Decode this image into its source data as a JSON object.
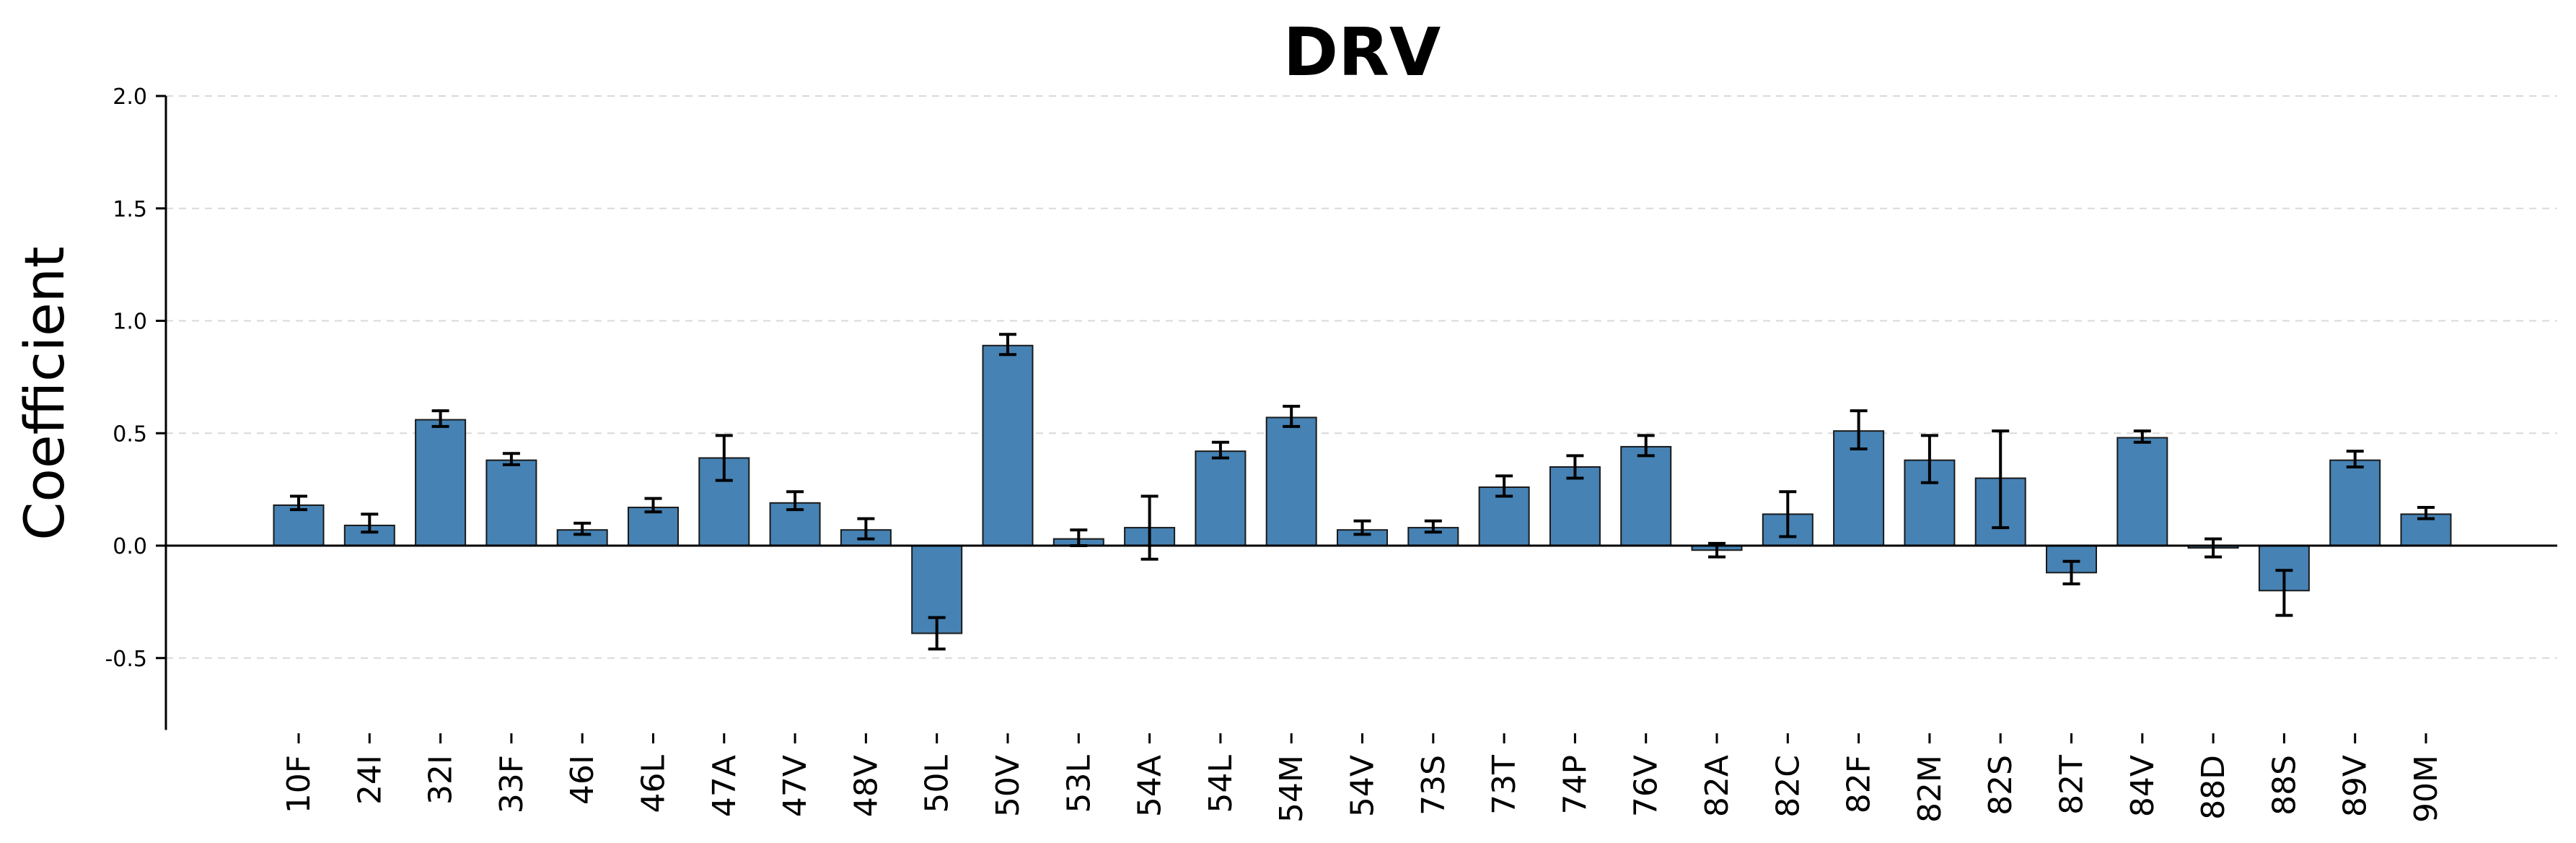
{
  "chart_data": {
    "type": "bar",
    "title": "DRV",
    "xlabel": "",
    "ylabel": "Coefficient",
    "ylim": [
      -0.82,
      2.0
    ],
    "yticks": [
      -0.5,
      0.0,
      0.5,
      1.0,
      1.5,
      2.0
    ],
    "ytick_labels": [
      "-0.5",
      "0.0",
      "0.5",
      "1.0",
      "1.5",
      "2.0"
    ],
    "grid": "horizontal dashed",
    "bar_color": "#4682b4",
    "categories": [
      "10F",
      "24I",
      "32I",
      "33F",
      "46I",
      "46L",
      "47A",
      "47V",
      "48V",
      "50L",
      "50V",
      "53L",
      "54A",
      "54L",
      "54M",
      "54V",
      "73S",
      "73T",
      "74P",
      "76V",
      "82A",
      "82C",
      "82F",
      "82M",
      "82S",
      "82T",
      "84V",
      "88D",
      "88S",
      "89V",
      "90M"
    ],
    "values": [
      0.18,
      0.09,
      0.56,
      0.38,
      0.07,
      0.17,
      0.39,
      0.19,
      0.07,
      -0.39,
      0.89,
      0.03,
      0.08,
      0.42,
      0.57,
      0.07,
      0.08,
      0.26,
      0.35,
      0.44,
      -0.02,
      0.14,
      0.51,
      0.38,
      0.3,
      -0.12,
      0.48,
      -0.01,
      -0.2,
      0.38,
      0.14
    ],
    "error_low": [
      0.16,
      0.06,
      0.53,
      0.36,
      0.05,
      0.15,
      0.29,
      0.16,
      0.03,
      -0.46,
      0.85,
      0.0,
      -0.06,
      0.39,
      0.53,
      0.05,
      0.06,
      0.22,
      0.3,
      0.4,
      -0.05,
      0.04,
      0.43,
      0.28,
      0.08,
      -0.17,
      0.46,
      -0.05,
      -0.31,
      0.35,
      0.12
    ],
    "error_high": [
      0.22,
      0.14,
      0.6,
      0.41,
      0.1,
      0.21,
      0.49,
      0.24,
      0.12,
      -0.32,
      0.94,
      0.07,
      0.22,
      0.46,
      0.62,
      0.11,
      0.11,
      0.31,
      0.4,
      0.49,
      0.01,
      0.24,
      0.6,
      0.49,
      0.51,
      -0.07,
      0.51,
      0.03,
      -0.11,
      0.42,
      0.17
    ]
  }
}
